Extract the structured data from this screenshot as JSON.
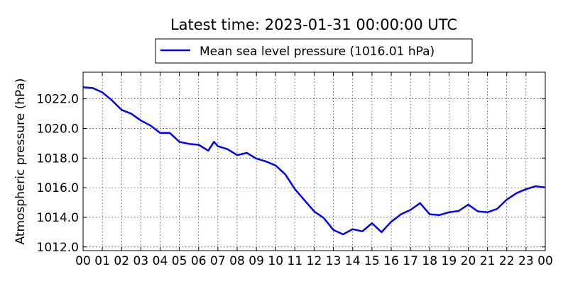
{
  "chart_data": {
    "type": "line",
    "title": "Latest time: 2023-01-31 00:00:00 UTC",
    "xlabel": "",
    "ylabel": "Atmospheric pressure (hPa)",
    "xlim": [
      0,
      24
    ],
    "ylim": [
      1011.75,
      1023.8
    ],
    "grid": true,
    "legend_position": "top-center",
    "x_tick_labels": [
      "00",
      "01",
      "02",
      "03",
      "04",
      "05",
      "06",
      "07",
      "08",
      "09",
      "10",
      "11",
      "12",
      "13",
      "14",
      "15",
      "16",
      "17",
      "18",
      "19",
      "20",
      "21",
      "22",
      "23",
      "00"
    ],
    "y_ticks": [
      1012.0,
      1014.0,
      1016.0,
      1018.0,
      1020.0,
      1022.0
    ],
    "y_tick_labels": [
      "1012.0",
      "1014.0",
      "1016.0",
      "1018.0",
      "1020.0",
      "1022.0"
    ],
    "series": [
      {
        "name": "Mean sea level pressure (1016.01 hPa)",
        "color": "#0000ff",
        "x": [
          0,
          0.5,
          1,
          1.5,
          2,
          2.5,
          3,
          3.5,
          4,
          4.5,
          5,
          5.5,
          6,
          6.5,
          6.8,
          7,
          7.5,
          8,
          8.5,
          9,
          9.5,
          10,
          10.5,
          11,
          11.5,
          12,
          12.5,
          13,
          13.5,
          14,
          14.5,
          15,
          15.5,
          16,
          16.5,
          17,
          17.5,
          18,
          18.5,
          19,
          19.5,
          20,
          20.5,
          21,
          21.5,
          22,
          22.5,
          23,
          23.5,
          24
        ],
        "y": [
          1022.78,
          1022.73,
          1022.44,
          1021.9,
          1021.25,
          1021.0,
          1020.54,
          1020.2,
          1019.7,
          1019.7,
          1019.1,
          1018.96,
          1018.9,
          1018.5,
          1019.1,
          1018.8,
          1018.6,
          1018.2,
          1018.35,
          1017.96,
          1017.77,
          1017.5,
          1016.9,
          1015.9,
          1015.15,
          1014.4,
          1013.95,
          1013.14,
          1012.85,
          1013.2,
          1013.05,
          1013.6,
          1013.0,
          1013.7,
          1014.2,
          1014.5,
          1014.96,
          1014.2,
          1014.15,
          1014.34,
          1014.43,
          1014.86,
          1014.4,
          1014.34,
          1014.57,
          1015.2,
          1015.63,
          1015.9,
          1016.1,
          1016.01
        ]
      }
    ]
  }
}
